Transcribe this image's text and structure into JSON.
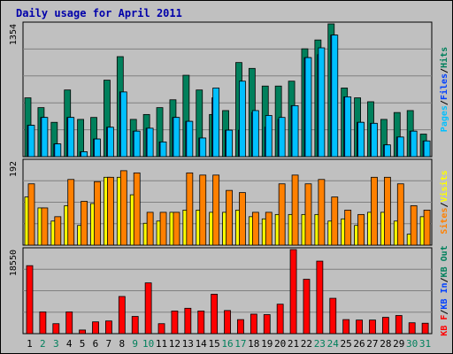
{
  "title": "Daily usage for April 2011",
  "colors": {
    "hits": "#00805c",
    "files": "#0040ff",
    "pages": "#00c0ff",
    "visits": "#ffff00",
    "sites": "#ff8000",
    "kb_in": "#0040ff",
    "kb_out": "#00805c",
    "kb_f": "#ff0000",
    "weekend_label": "#00805c",
    "weekday_label": "#000000"
  },
  "chart_data": [
    {
      "type": "bar",
      "panel": "top",
      "ymax_label": "1354",
      "ylim": [
        0,
        1354
      ],
      "series_labels": [
        "Pages",
        "/",
        "Files",
        "/",
        "Hits"
      ],
      "series": [
        {
          "name": "Hits",
          "values": [
            600,
            500,
            350,
            680,
            380,
            400,
            780,
            1020,
            380,
            430,
            500,
            580,
            830,
            680,
            430,
            470,
            960,
            900,
            720,
            720,
            770,
            1100,
            1190,
            1354,
            700,
            600,
            560,
            380,
            450,
            470,
            230
          ]
        },
        {
          "name": "Files",
          "values": [
            320,
            400,
            130,
            400,
            50,
            180,
            300,
            660,
            260,
            290,
            150,
            400,
            360,
            190,
            600,
            270,
            270,
            450,
            300,
            380,
            520,
            1010,
            1040,
            1240,
            610,
            350,
            340,
            120,
            200,
            260,
            160
          ]
        },
        {
          "name": "Pages",
          "values": [
            320,
            400,
            130,
            400,
            50,
            180,
            300,
            660,
            260,
            290,
            150,
            400,
            360,
            190,
            700,
            270,
            770,
            470,
            420,
            400,
            520,
            1010,
            1110,
            1240,
            610,
            350,
            340,
            120,
            200,
            260,
            160
          ]
        }
      ]
    },
    {
      "type": "bar",
      "panel": "middle",
      "ymax_label": "192",
      "ylim": [
        0,
        192
      ],
      "series_labels": [
        "Sites",
        "/",
        "Visits"
      ],
      "series": [
        {
          "name": "Visits",
          "values": [
            110,
            85,
            55,
            90,
            45,
            95,
            155,
            155,
            115,
            50,
            55,
            75,
            80,
            80,
            75,
            75,
            80,
            65,
            60,
            70,
            70,
            70,
            70,
            55,
            60,
            45,
            75,
            75,
            55,
            25,
            65
          ]
        },
        {
          "name": "Sites",
          "values": [
            140,
            85,
            65,
            150,
            100,
            145,
            155,
            170,
            165,
            75,
            75,
            75,
            165,
            160,
            160,
            125,
            120,
            75,
            75,
            140,
            160,
            140,
            150,
            110,
            80,
            70,
            155,
            155,
            140,
            90,
            80
          ]
        }
      ]
    },
    {
      "type": "bar",
      "panel": "bottom",
      "ymax_label": "18550",
      "ylim": [
        0,
        18550
      ],
      "series_labels": [
        "KB F",
        "/",
        "KB In",
        "/",
        "KB Out"
      ],
      "series": [
        {
          "name": "KB F",
          "values": [
            15000,
            4800,
            2200,
            4800,
            800,
            2600,
            2800,
            8200,
            3800,
            11200,
            2200,
            5000,
            5600,
            5000,
            8700,
            5100,
            3100,
            4300,
            4200,
            6500,
            18550,
            12000,
            16000,
            7800,
            3100,
            3000,
            3000,
            3600,
            4000,
            2400,
            2300
          ]
        }
      ]
    }
  ],
  "x_labels": [
    "1",
    "2",
    "3",
    "4",
    "5",
    "6",
    "7",
    "8",
    "9",
    "10",
    "11",
    "12",
    "13",
    "14",
    "15",
    "16",
    "17",
    "18",
    "19",
    "20",
    "21",
    "22",
    "23",
    "24",
    "25",
    "26",
    "27",
    "28",
    "29",
    "30",
    "31"
  ],
  "weekend_days": [
    2,
    3,
    9,
    10,
    16,
    17,
    23,
    24,
    30,
    31
  ]
}
